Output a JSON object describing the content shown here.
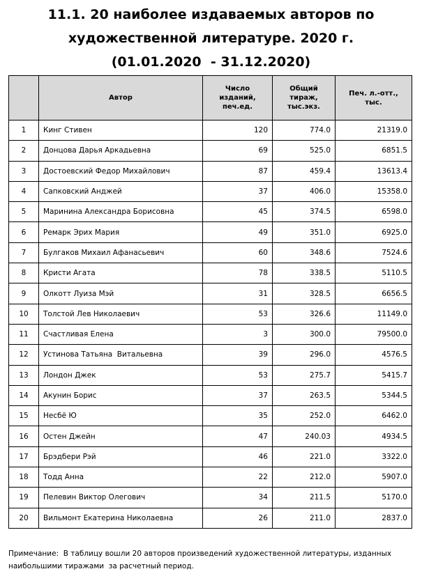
{
  "title": [
    "11.1. 20 наиболее издаваемых авторов по",
    "художественной литературе. 2020 г.",
    "(01.01.2020  - 31.12.2020)"
  ],
  "table": {
    "header": {
      "author": [
        "Автор"
      ],
      "editions": [
        "Число",
        "изданий,",
        "печ.ед."
      ],
      "circulation": [
        "Общий",
        "тираж,",
        "тыс.экз."
      ],
      "sheets": [
        "Печ. л.-отт.,",
        "тыс."
      ]
    },
    "rows": [
      [
        "1",
        "Кинг Стивен",
        "120",
        "774.0",
        "21319.0"
      ],
      [
        "2",
        "Донцова Дарья Аркадьевна",
        "69",
        "525.0",
        "6851.5"
      ],
      [
        "3",
        "Достоевский Федор Михайлович",
        "87",
        "459.4",
        "13613.4"
      ],
      [
        "4",
        "Сапковский Анджей",
        "37",
        "406.0",
        "15358.0"
      ],
      [
        "5",
        "Маринина Александра Борисовна",
        "45",
        "374.5",
        "6598.0"
      ],
      [
        "6",
        "Ремарк Эрих Мария",
        "49",
        "351.0",
        "6925.0"
      ],
      [
        "7",
        "Булгаков Михаил Афанасьевич",
        "60",
        "348.6",
        "7524.6"
      ],
      [
        "8",
        "Кристи Агата",
        "78",
        "338.5",
        "5110.5"
      ],
      [
        "9",
        "Олкотт Луиза Мэй",
        "31",
        "328.5",
        "6656.5"
      ],
      [
        "10",
        "Толстой Лев Николаевич",
        "53",
        "326.6",
        "11149.0"
      ],
      [
        "11",
        "Счастливая Елена",
        "3",
        "300.0",
        "79500.0"
      ],
      [
        "12",
        "Устинова Татьяна  Витальевна",
        "39",
        "296.0",
        "4576.5"
      ],
      [
        "13",
        "Лондон Джек",
        "53",
        "275.7",
        "5415.7"
      ],
      [
        "14",
        "Акунин Борис",
        "37",
        "263.5",
        "5344.5"
      ],
      [
        "15",
        "Несбё Ю",
        "35",
        "252.0",
        "6462.0"
      ],
      [
        "16",
        "Остен Джейн",
        "47",
        "240.03",
        "4934.5"
      ],
      [
        "17",
        "Брэдбери Рэй",
        "46",
        "221.0",
        "3322.0"
      ],
      [
        "18",
        "Тодд Анна",
        "22",
        "212.0",
        "5907.0"
      ],
      [
        "19",
        "Пелевин Виктор Олегович",
        "34",
        "211.5",
        "5170.0"
      ],
      [
        "20",
        "Вильмонт Екатерина Николаевна",
        "26",
        "211.0",
        "2837.0"
      ]
    ]
  },
  "note": [
    "Примечание:  В таблицу вошли 20 авторов произведений художественной литературы, изданных",
    "наибольшими тиражами  за расчетный период."
  ]
}
